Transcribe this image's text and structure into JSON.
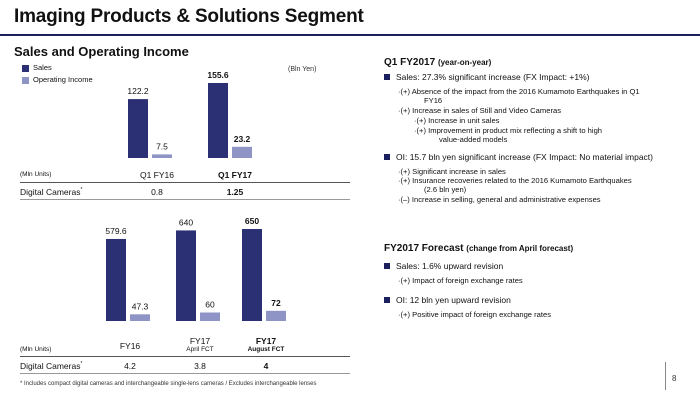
{
  "title": "Imaging Products & Solutions Segment",
  "subtitle": "Sales and Operating Income",
  "unit": "(Bln Yen)",
  "colors": {
    "sales": "#2b2f73",
    "oi": "#8e94c6",
    "accent": "#1b1f5e"
  },
  "legend": {
    "sales": "Sales",
    "oi": "Operating Income"
  },
  "chart_data": [
    {
      "type": "bar",
      "categories": [
        "Q1 FY16",
        "Q1 FY17"
      ],
      "series": [
        {
          "name": "Sales",
          "values": [
            122.2,
            155.6
          ],
          "labels": [
            "122.2",
            "155.6"
          ]
        },
        {
          "name": "Operating Income",
          "values": [
            7.5,
            23.2
          ],
          "labels": [
            "7.5",
            "23.2"
          ]
        }
      ],
      "bold_labels": [
        false,
        true
      ],
      "ylim": [
        0,
        160
      ]
    },
    {
      "type": "bar",
      "categories": [
        "FY16",
        "FY17",
        "FY17"
      ],
      "category_sublabels": [
        "",
        "April FCT",
        "August FCT"
      ],
      "series": [
        {
          "name": "Sales",
          "values": [
            579.6,
            640,
            650
          ],
          "labels": [
            "579.6",
            "640",
            "650"
          ]
        },
        {
          "name": "Operating Income",
          "values": [
            47.3,
            60,
            72
          ],
          "labels": [
            "47.3",
            "60",
            "72"
          ]
        }
      ],
      "bold_labels": [
        false,
        false,
        true
      ],
      "ylim": [
        0,
        680
      ]
    }
  ],
  "table1": {
    "unit_label": "(Mln Units)",
    "row_label": "Digital Cameras",
    "row_mark": "*",
    "values": [
      "0.8",
      "1.25"
    ]
  },
  "table2": {
    "unit_label": "(Mln Units)",
    "row_label": "Digital Cameras",
    "row_mark": "*",
    "values": [
      "4.2",
      "3.8",
      "4"
    ]
  },
  "q1": {
    "title": "Q1 FY2017",
    "title_paren": "(year-on-year)",
    "sales_bullet": "Sales: 27.3% significant increase (FX Impact: +1%)",
    "sales_items": [
      "·(+) Absence of the impact from the 2016 Kumamoto Earthquakes in Q1",
      "FY16",
      "·(+) Increase in sales of Still and Video Cameras",
      "·(+) Increase in unit sales",
      "·(+) Improvement in product mix reflecting a shift to high",
      "value-added models"
    ],
    "oi_bullet": "OI: 15.7 bln yen significant increase (FX Impact: No material impact)",
    "oi_items": [
      "·(+) Significant increase in sales",
      "·(+) Insurance recoveries related to the 2016 Kumamoto Earthquakes",
      "(2.6 bln yen)",
      "·(–) Increase in selling, general and administrative expenses"
    ]
  },
  "forecast": {
    "title": "FY2017 Forecast",
    "title_paren": "(change from April forecast)",
    "sales_bullet": "Sales: 1.6% upward revision",
    "sales_items": [
      "·(+) Impact of foreign exchange rates"
    ],
    "oi_bullet": "OI: 12 bln yen upward revision",
    "oi_items": [
      "·(+)  Positive impact of foreign exchange rates"
    ]
  },
  "footnote": "* Includes compact digital cameras and interchangeable single-lens cameras / Excludes interchangeable lenses",
  "page_number": "8"
}
